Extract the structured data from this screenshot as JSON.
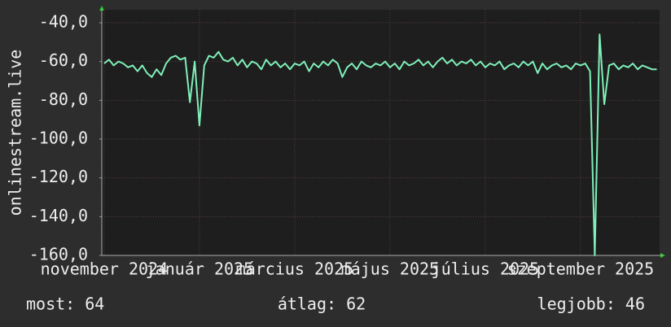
{
  "chart_data": {
    "type": "line",
    "y_label": "onlinestream.live",
    "ylim": [
      -160,
      -33.3
    ],
    "yticks": [
      {
        "value": -40,
        "label": "-40,0"
      },
      {
        "value": -60,
        "label": "-60,0"
      },
      {
        "value": -80,
        "label": "-80,0"
      },
      {
        "value": -100,
        "label": "-100,0"
      },
      {
        "value": -120,
        "label": "-120,0"
      },
      {
        "value": -140,
        "label": "-140,0"
      },
      {
        "value": -160,
        "label": "-160,0"
      }
    ],
    "xlim": [
      -0.05,
      11.66
    ],
    "xticks": [
      {
        "value": 0,
        "label": "november 2024"
      },
      {
        "value": 2,
        "label": "január 2025"
      },
      {
        "value": 4,
        "label": "március 2025"
      },
      {
        "value": 6,
        "label": "május 2025"
      },
      {
        "value": 8,
        "label": "július 2025"
      },
      {
        "value": 10,
        "label": "szeptember 2025"
      }
    ],
    "grid": true,
    "x": [
      0.0,
      0.1,
      0.2,
      0.3,
      0.4,
      0.5,
      0.6,
      0.7,
      0.8,
      0.9,
      1.0,
      1.1,
      1.2,
      1.3,
      1.4,
      1.5,
      1.6,
      1.7,
      1.8,
      1.9,
      2.0,
      2.1,
      2.2,
      2.3,
      2.4,
      2.5,
      2.6,
      2.7,
      2.8,
      2.9,
      3.0,
      3.1,
      3.2,
      3.3,
      3.4,
      3.5,
      3.6,
      3.7,
      3.8,
      3.9,
      4.0,
      4.1,
      4.2,
      4.3,
      4.4,
      4.5,
      4.6,
      4.7,
      4.8,
      4.9,
      5.0,
      5.1,
      5.2,
      5.3,
      5.4,
      5.5,
      5.6,
      5.7,
      5.8,
      5.9,
      6.0,
      6.1,
      6.2,
      6.3,
      6.4,
      6.5,
      6.6,
      6.7,
      6.8,
      6.9,
      7.0,
      7.1,
      7.2,
      7.3,
      7.4,
      7.5,
      7.6,
      7.7,
      7.8,
      7.9,
      8.0,
      8.1,
      8.2,
      8.3,
      8.4,
      8.5,
      8.6,
      8.7,
      8.8,
      8.9,
      9.0,
      9.1,
      9.2,
      9.3,
      9.4,
      9.5,
      9.6,
      9.7,
      9.8,
      9.9,
      10.0,
      10.1,
      10.2,
      10.3,
      10.4,
      10.5,
      10.6,
      10.7,
      10.8,
      10.9,
      11.0,
      11.1,
      11.2,
      11.3,
      11.4,
      11.5,
      11.6
    ],
    "series": [
      {
        "color": "#7ff0b8",
        "values": [
          -61,
          -59,
          -62,
          -60,
          -61,
          -63,
          -62,
          -65,
          -62,
          -66,
          -68,
          -64,
          -67,
          -61,
          -58,
          -57,
          -59,
          -58,
          -81,
          -60,
          -93,
          -62,
          -57,
          -58,
          -55,
          -59,
          -60,
          -58,
          -62,
          -59,
          -63,
          -60,
          -61,
          -64,
          -59,
          -62,
          -60,
          -63,
          -61,
          -64,
          -61,
          -62,
          -60,
          -65,
          -61,
          -63,
          -60,
          -62,
          -59,
          -61,
          -68,
          -63,
          -61,
          -64,
          -60,
          -62,
          -63,
          -61,
          -62,
          -60,
          -63,
          -61,
          -64,
          -60,
          -62,
          -61,
          -59,
          -62,
          -60,
          -63,
          -60,
          -58,
          -61,
          -59,
          -62,
          -60,
          -61,
          -59,
          -62,
          -60,
          -63,
          -61,
          -62,
          -60,
          -64,
          -62,
          -61,
          -63,
          -60,
          -62,
          -60,
          -66,
          -61,
          -64,
          -62,
          -61,
          -63,
          -62,
          -64,
          -61,
          -62,
          -61,
          -65,
          -160,
          -46,
          -82,
          -62,
          -61,
          -64,
          -62,
          -63,
          -61,
          -64,
          -62,
          -63,
          -64,
          -64
        ]
      }
    ],
    "footer": [
      "most: 64",
      "átlag: 62",
      "legjobb: 46"
    ]
  }
}
